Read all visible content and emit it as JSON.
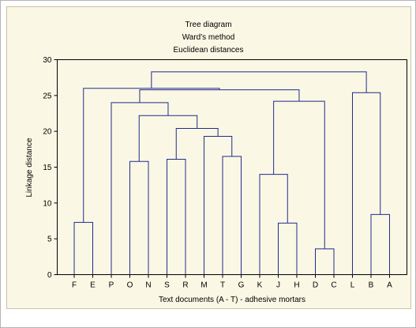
{
  "chart_data": {
    "type": "dendrogram",
    "title": [
      "Tree diagram",
      "Ward's method",
      "Euclidean distances"
    ],
    "xlabel": "Text documents (A - T) - adhesive mortars",
    "ylabel": "Linkage distance",
    "ylim": [
      0,
      30
    ],
    "yticks": [
      0,
      5,
      10,
      15,
      20,
      25,
      30
    ],
    "grid": false,
    "leaves": [
      "F",
      "E",
      "P",
      "O",
      "N",
      "S",
      "R",
      "M",
      "T",
      "G",
      "K",
      "J",
      "H",
      "D",
      "C",
      "L",
      "B",
      "A"
    ],
    "merges": [
      {
        "left": "F",
        "right": "E",
        "height": 7.3
      },
      {
        "left": "O",
        "right": "N",
        "height": 15.8
      },
      {
        "left": "S",
        "right": "R",
        "height": 16.1
      },
      {
        "left": "T",
        "right": "G",
        "height": 16.5
      },
      {
        "left": "M",
        "right": "T,G",
        "height": 19.3
      },
      {
        "left": "S,R",
        "right": "M,T,G",
        "height": 20.4
      },
      {
        "left": "O,N",
        "right": "S,R,M,T,G",
        "height": 22.2
      },
      {
        "left": "P",
        "right": "O,N,S,R,M,T,G",
        "height": 24.0
      },
      {
        "left": "J",
        "right": "H",
        "height": 7.2
      },
      {
        "left": "K",
        "right": "J,H",
        "height": 14.0
      },
      {
        "left": "D",
        "right": "C",
        "height": 3.6
      },
      {
        "left": "K,J,H",
        "right": "D,C",
        "height": 24.2
      },
      {
        "left": "P,O,N,S,R,M,T,G",
        "right": "K,J,H,D,C",
        "height": 25.8
      },
      {
        "left": "F,E",
        "right": "P,O,N,S,R,M,T,G,K,J,H,D,C",
        "height": 26.0
      },
      {
        "left": "B",
        "right": "A",
        "height": 8.4
      },
      {
        "left": "L",
        "right": "B,A",
        "height": 25.4
      },
      {
        "left": "F,E,P,O,N,S,R,M,T,G,K,J,H,D,C",
        "right": "L,B,A",
        "height": 28.3
      }
    ],
    "colors": {
      "tree": "#1f2d8a",
      "axis": "#000000",
      "background": "#fbf7e5"
    }
  }
}
